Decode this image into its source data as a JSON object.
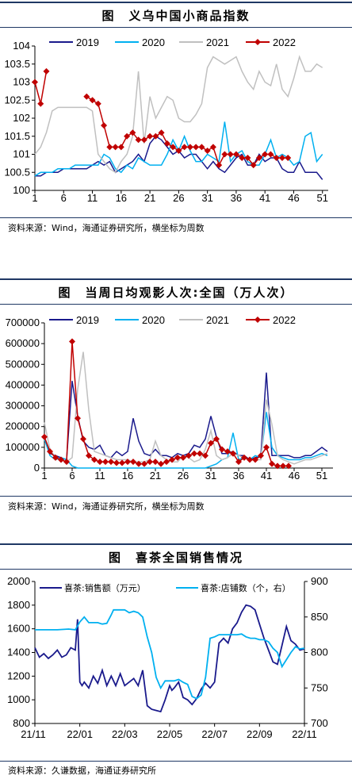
{
  "charts": [
    {
      "title": "图　义乌中国小商品指数",
      "source": "资料来源：Wind，海通证券研究所，横坐标为周数",
      "chart_data": {
        "type": "line",
        "x": [
          1,
          2,
          3,
          4,
          5,
          6,
          7,
          8,
          9,
          10,
          11,
          12,
          13,
          14,
          15,
          16,
          17,
          18,
          19,
          20,
          21,
          22,
          23,
          24,
          25,
          26,
          27,
          28,
          29,
          30,
          31,
          32,
          33,
          34,
          35,
          36,
          37,
          38,
          39,
          40,
          41,
          42,
          43,
          44,
          45,
          46,
          47,
          48,
          49,
          50,
          51
        ],
        "xticks": [
          1,
          6,
          11,
          16,
          21,
          26,
          31,
          36,
          41,
          46,
          51
        ],
        "ylim": [
          100,
          104
        ],
        "yticks": [
          "100",
          "100.5",
          "101",
          "101.5",
          "102",
          "102.5",
          "103",
          "103.5",
          "104"
        ],
        "series": [
          {
            "name": "2019",
            "color": "#1a1a8c",
            "marker": false,
            "values": [
              100.4,
              100.4,
              100.5,
              100.5,
              100.5,
              100.6,
              100.6,
              100.6,
              100.6,
              100.6,
              100.7,
              100.8,
              100.7,
              100.8,
              100.5,
              100.6,
              100.7,
              100.8,
              101.0,
              100.8,
              101.3,
              101.5,
              101.4,
              101.2,
              101.0,
              101.1,
              100.9,
              101.0,
              101.0,
              100.8,
              100.6,
              100.8,
              100.6,
              100.5,
              100.7,
              100.9,
              101.0,
              100.7,
              100.7,
              101.0,
              100.8,
              100.9,
              100.9,
              100.6,
              100.5,
              100.5,
              100.8,
              100.5,
              100.5,
              100.5,
              100.3
            ]
          },
          {
            "name": "2020",
            "color": "#00b0f0",
            "marker": false,
            "values": [
              100.4,
              100.5,
              100.5,
              100.5,
              100.6,
              100.6,
              100.6,
              100.7,
              100.7,
              100.7,
              100.7,
              100.7,
              101.0,
              100.9,
              100.6,
              100.5,
              100.7,
              100.6,
              100.9,
              100.8,
              100.7,
              100.7,
              100.7,
              101.0,
              101.4,
              101.1,
              101.5,
              101.1,
              100.8,
              100.8,
              101.0,
              100.9,
              100.8,
              101.9,
              100.8,
              101.0,
              101.1,
              100.8,
              100.7,
              100.7,
              101.0,
              101.4,
              100.9,
              101.0,
              100.9,
              100.7,
              100.8,
              101.5,
              101.6,
              100.8,
              101.0
            ]
          },
          {
            "name": "2021",
            "color": "#c0c0c0",
            "marker": false,
            "values": [
              101.0,
              101.2,
              101.6,
              102.2,
              102.3,
              102.3,
              102.3,
              102.3,
              102.3,
              102.3,
              102.2,
              101.0,
              100.8,
              100.6,
              100.5,
              100.8,
              101.0,
              101.5,
              103.3,
              101.3,
              102.6,
              102.0,
              102.3,
              102.6,
              102.5,
              102.0,
              101.9,
              101.9,
              102.1,
              102.4,
              103.4,
              103.7,
              103.6,
              103.5,
              103.6,
              103.7,
              103.3,
              103.0,
              102.8,
              103.3,
              103.0,
              102.9,
              103.5,
              102.8,
              102.6,
              103.1,
              103.7,
              103.3,
              103.3,
              103.5,
              103.4
            ]
          },
          {
            "name": "2022",
            "color": "#c00000",
            "marker": true,
            "values": [
              103.0,
              102.4,
              103.3,
              null,
              null,
              null,
              null,
              null,
              null,
              102.6,
              102.5,
              102.4,
              101.8,
              101.2,
              101.2,
              101.2,
              101.5,
              101.6,
              101.4,
              101.4,
              101.5,
              101.5,
              101.6,
              101.3,
              101.2,
              101.1,
              101.2,
              101.2,
              101.2,
              101.2,
              101.1,
              101.2,
              100.7,
              101.0,
              101.0,
              101.0,
              100.9,
              100.9,
              100.7,
              100.9,
              101.0,
              101.0,
              100.9,
              100.9,
              100.9,
              null,
              null,
              null,
              null,
              null,
              null
            ]
          }
        ]
      }
    },
    {
      "title": "图　当周日均观影人次:全国（万人次）",
      "source": "资料来源：Wind，海通证券研究所，横坐标为周数",
      "chart_data": {
        "type": "line",
        "x": [
          1,
          2,
          3,
          4,
          5,
          6,
          7,
          8,
          9,
          10,
          11,
          12,
          13,
          14,
          15,
          16,
          17,
          18,
          19,
          20,
          21,
          22,
          23,
          24,
          25,
          26,
          27,
          28,
          29,
          30,
          31,
          32,
          33,
          34,
          35,
          36,
          37,
          38,
          39,
          40,
          41,
          42,
          43,
          44,
          45,
          46,
          47,
          48,
          49,
          50,
          51,
          52
        ],
        "xticks": [
          1,
          6,
          11,
          16,
          21,
          26,
          31,
          36,
          41,
          46,
          51
        ],
        "ylim": [
          0,
          700000
        ],
        "yticks": [
          "0",
          "100000",
          "200000",
          "300000",
          "400000",
          "500000",
          "600000",
          "700000"
        ],
        "series": [
          {
            "name": "2019",
            "color": "#1a1a8c",
            "marker": false,
            "values": [
              140000,
              70000,
              60000,
              50000,
              40000,
              420000,
              250000,
              130000,
              100000,
              90000,
              110000,
              60000,
              50000,
              80000,
              60000,
              80000,
              240000,
              130000,
              70000,
              60000,
              90000,
              60000,
              60000,
              50000,
              70000,
              60000,
              70000,
              110000,
              100000,
              140000,
              250000,
              150000,
              70000,
              70000,
              80000,
              60000,
              60000,
              40000,
              50000,
              60000,
              460000,
              60000,
              60000,
              60000,
              60000,
              50000,
              50000,
              60000,
              60000,
              80000,
              100000,
              80000
            ]
          },
          {
            "name": "2020",
            "color": "#00b0f0",
            "marker": false,
            "values": [
              140000,
              60000,
              40000,
              50000,
              40000,
              10000,
              0,
              0,
              0,
              0,
              0,
              0,
              0,
              0,
              0,
              0,
              0,
              0,
              0,
              0,
              0,
              0,
              0,
              0,
              0,
              0,
              0,
              0,
              0,
              0,
              10000,
              20000,
              40000,
              50000,
              170000,
              40000,
              50000,
              40000,
              60000,
              50000,
              270000,
              100000,
              60000,
              50000,
              40000,
              40000,
              40000,
              50000,
              50000,
              60000,
              70000,
              60000
            ]
          },
          {
            "name": "2021",
            "color": "#c0c0c0",
            "marker": false,
            "values": [
              220000,
              90000,
              50000,
              40000,
              30000,
              50000,
              380000,
              560000,
              280000,
              80000,
              70000,
              60000,
              50000,
              40000,
              40000,
              40000,
              30000,
              30000,
              30000,
              40000,
              130000,
              60000,
              40000,
              30000,
              30000,
              60000,
              50000,
              30000,
              40000,
              90000,
              180000,
              60000,
              40000,
              50000,
              70000,
              60000,
              50000,
              40000,
              40000,
              40000,
              330000,
              210000,
              60000,
              40000,
              30000,
              20000,
              30000,
              40000,
              40000,
              50000,
              60000,
              70000
            ]
          },
          {
            "name": "2022",
            "color": "#c00000",
            "marker": true,
            "values": [
              150000,
              80000,
              50000,
              40000,
              30000,
              610000,
              240000,
              140000,
              60000,
              40000,
              30000,
              30000,
              30000,
              25000,
              25000,
              30000,
              30000,
              20000,
              20000,
              30000,
              30000,
              20000,
              30000,
              40000,
              50000,
              50000,
              60000,
              70000,
              70000,
              60000,
              120000,
              140000,
              90000,
              80000,
              70000,
              30000,
              50000,
              40000,
              40000,
              60000,
              100000,
              20000,
              10000,
              10000,
              10000,
              null,
              null,
              null,
              null,
              null,
              null,
              null
            ]
          }
        ]
      }
    },
    {
      "title": "图　喜茶全国销售情况",
      "source": "资料来源：久谦数据，海通证券研究所",
      "chart_data": {
        "type": "line",
        "xticks": [
          "21/11",
          "22/01",
          "22/03",
          "22/05",
          "22/07",
          "22/09",
          "22/11"
        ],
        "x_range": [
          0,
          12
        ],
        "ylim": [
          800,
          2000
        ],
        "yticks": [
          "800",
          "1000",
          "1200",
          "1400",
          "1600",
          "1800",
          "2000"
        ],
        "y2lim": [
          700,
          900
        ],
        "y2ticks": [
          "700",
          "750",
          "800",
          "850",
          "900"
        ],
        "series": [
          {
            "name": "喜茶:销售额（万元）",
            "axis": "left",
            "color": "#1a1a8c",
            "x": [
              0,
              0.2,
              0.4,
              0.6,
              0.8,
              1.0,
              1.2,
              1.4,
              1.6,
              1.8,
              1.9,
              2.0,
              2.1,
              2.2,
              2.4,
              2.6,
              2.8,
              3.0,
              3.2,
              3.4,
              3.6,
              3.8,
              4.0,
              4.2,
              4.4,
              4.6,
              4.8,
              5.0,
              5.2,
              5.4,
              5.6,
              5.8,
              6.0,
              6.1,
              6.2,
              6.4,
              6.6,
              6.8,
              7.0,
              7.2,
              7.4,
              7.6,
              7.8,
              8.0,
              8.2,
              8.4,
              8.6,
              8.8,
              9.0,
              9.2,
              9.4,
              9.6,
              9.8,
              10.0,
              10.2,
              10.4,
              10.6,
              10.8,
              11.0,
              11.2,
              11.4,
              11.6,
              11.8,
              12.0
            ],
            "values": [
              1440,
              1360,
              1390,
              1350,
              1380,
              1420,
              1360,
              1380,
              1440,
              1420,
              1680,
              1150,
              1120,
              1150,
              1100,
              1200,
              1140,
              1250,
              1120,
              1200,
              1120,
              1220,
              1120,
              1150,
              1180,
              1120,
              1250,
              950,
              920,
              910,
              900,
              1000,
              1120,
              1080,
              1100,
              1150,
              1020,
              1000,
              960,
              1010,
              1090,
              1140,
              1100,
              1150,
              1480,
              1520,
              1480,
              1600,
              1650,
              1740,
              1800,
              1790,
              1760,
              1640,
              1520,
              1420,
              1320,
              1300,
              1460,
              1620,
              1500,
              1470,
              1420,
              1430
            ]
          },
          {
            "name": "喜茶:店铺数（个，右）",
            "axis": "right",
            "color": "#00b0f0",
            "x": [
              0,
              0.5,
              1.0,
              1.5,
              1.8,
              2.0,
              2.2,
              2.4,
              2.6,
              2.8,
              3.0,
              3.2,
              3.4,
              3.5,
              3.6,
              3.8,
              4.0,
              4.2,
              4.4,
              4.6,
              4.8,
              5.0,
              5.2,
              5.4,
              5.6,
              5.8,
              6.0,
              6.2,
              6.4,
              6.6,
              6.8,
              7.0,
              7.2,
              7.4,
              7.6,
              7.8,
              8.0,
              8.2,
              8.4,
              8.6,
              8.8,
              9.0,
              9.2,
              9.4,
              9.6,
              9.8,
              10.0,
              10.2,
              10.4,
              10.6,
              10.8,
              11.0,
              11.2,
              11.4,
              11.6,
              11.8,
              12.0
            ],
            "values": [
              832,
              832,
              832,
              833,
              832,
              843,
              850,
              842,
              842,
              842,
              840,
              841,
              853,
              860,
              860,
              860,
              860,
              856,
              858,
              856,
              850,
              822,
              800,
              765,
              750,
              760,
              760,
              760,
              762,
              758,
              755,
              738,
              735,
              740,
              765,
              820,
              822,
              825,
              825,
              825,
              825,
              825,
              826,
              822,
              820,
              820,
              818,
              818,
              815,
              806,
              800,
              780,
              790,
              800,
              808,
              805,
              806
            ]
          }
        ]
      }
    }
  ]
}
